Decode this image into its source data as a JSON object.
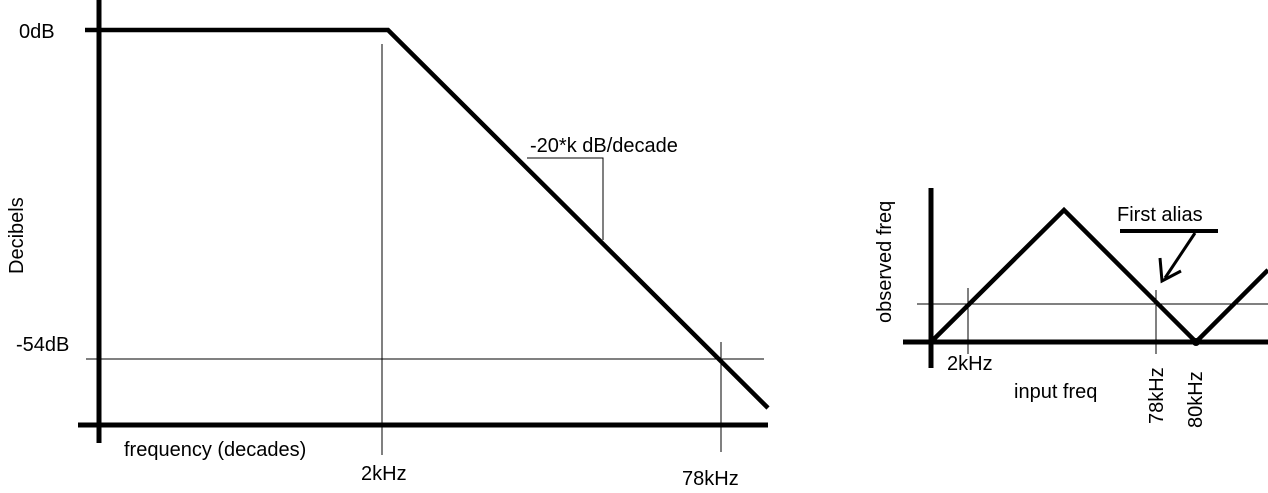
{
  "left_plot": {
    "y_top_label": "0dB",
    "y_bottom_label": "-54dB",
    "y_axis_title": "Decibels",
    "x_axis_title": "frequency (decades)",
    "x_tick_2k": "2kHz",
    "x_tick_78k": "78kHz",
    "slope_label": "-20*k dB/decade"
  },
  "right_plot": {
    "y_axis_title": "observed freq",
    "x_axis_title": "input freq",
    "tick_2k": "2kHz",
    "tick_78k": "78kHz",
    "tick_80k": "80kHz",
    "annotation": "First alias"
  },
  "colors": {
    "ink": "#000000",
    "background": "#ffffff"
  }
}
